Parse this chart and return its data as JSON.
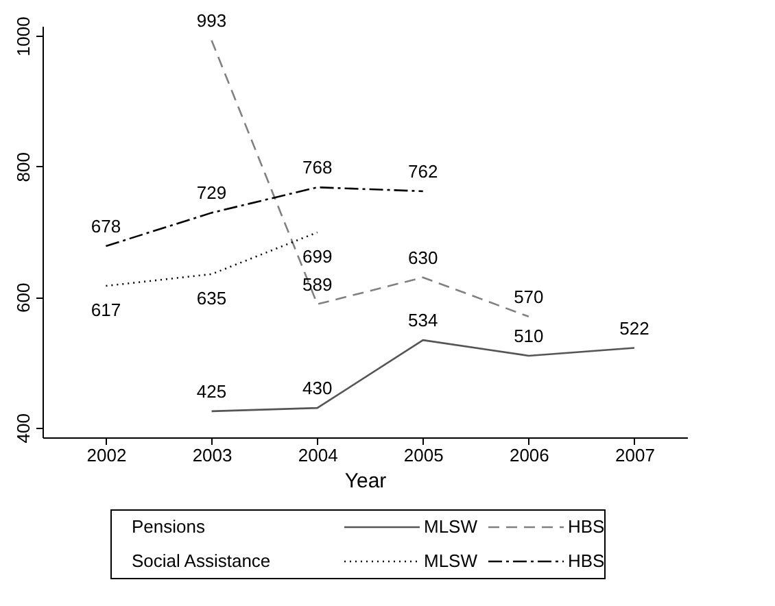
{
  "chart_data": {
    "type": "line",
    "xlabel": "Year",
    "x": [
      2002,
      2003,
      2004,
      2005,
      2006,
      2007
    ],
    "xlim": [
      2001.4,
      2007.5
    ],
    "xticks": [
      2002,
      2003,
      2004,
      2005,
      2006,
      2007
    ],
    "ylim": [
      385,
      1015
    ],
    "yticks": [
      400,
      600,
      800,
      1000
    ],
    "grid": false,
    "legend": "bottom",
    "data_labels": true,
    "marker": "none",
    "annotations": [
      "Pensions",
      "Social Assistance"
    ],
    "series": [
      {
        "name": "MLSW",
        "color": "#555555",
        "line_style": "solid",
        "values": [
          null,
          425,
          430,
          534,
          510,
          522
        ]
      },
      {
        "name": "HBS",
        "color": "#808080",
        "line_style": "dashed",
        "values": [
          null,
          993,
          589,
          630,
          570,
          null
        ]
      },
      {
        "name": "MLSW",
        "color": "#000000",
        "line_style": "dotted",
        "values": [
          617,
          635,
          699,
          null,
          null,
          null
        ]
      },
      {
        "name": "HBS",
        "color": "#000000",
        "line_style": "dashdot",
        "values": [
          678,
          729,
          768,
          762,
          null,
          null
        ]
      }
    ]
  }
}
